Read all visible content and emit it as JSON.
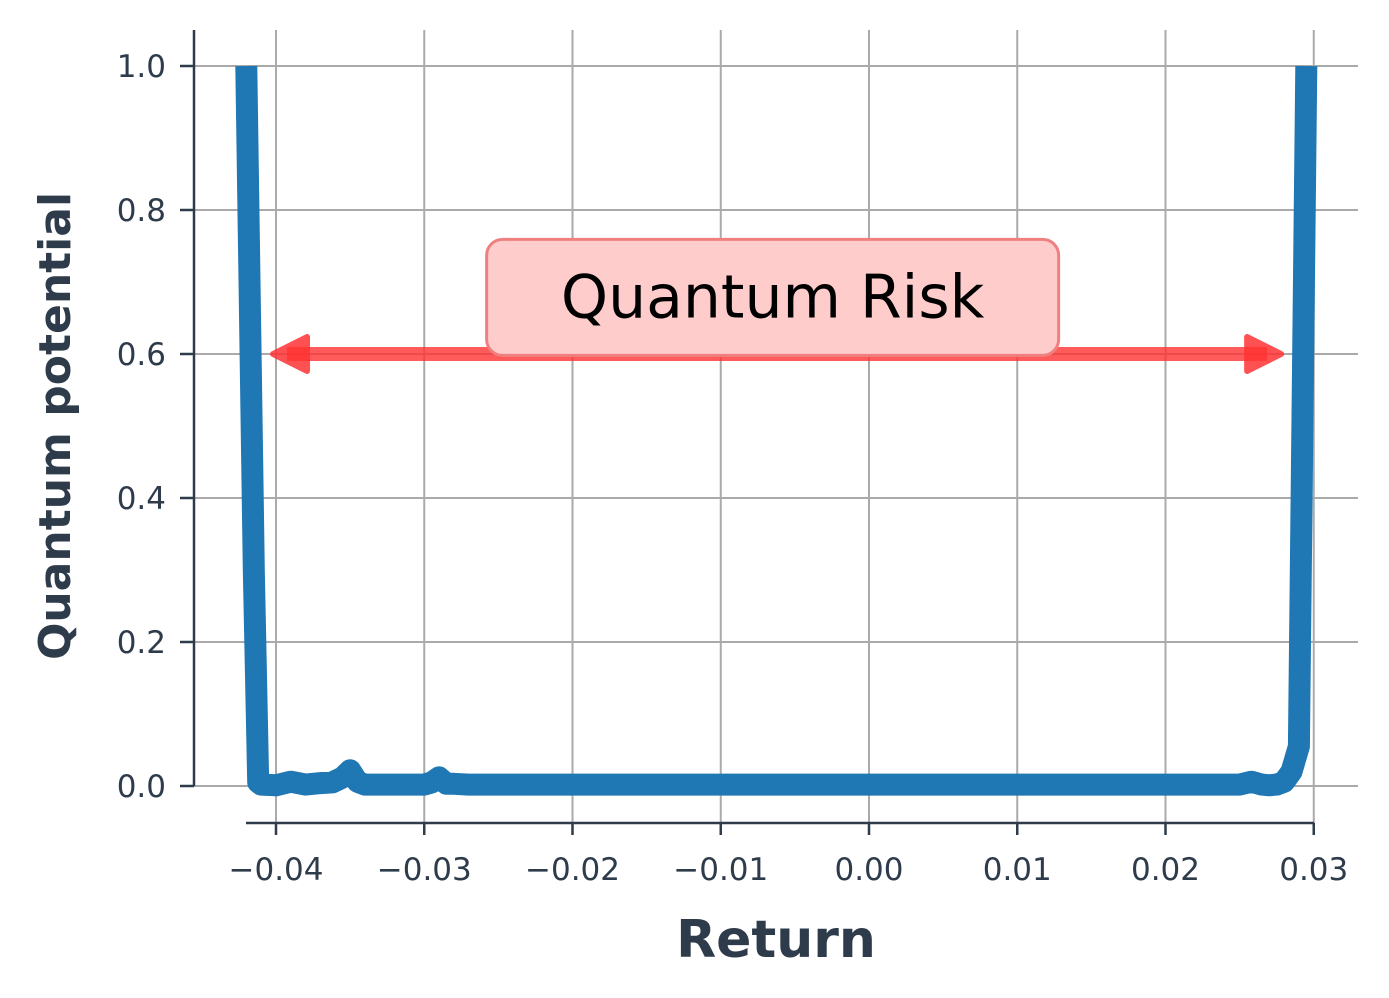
{
  "chart_data": {
    "type": "line",
    "title": "",
    "xlabel": "Return",
    "ylabel": "Quantum potential",
    "xlim": [
      -0.0455,
      0.033
    ],
    "ylim": [
      -0.05,
      1.05
    ],
    "xticks": [
      -0.04,
      -0.03,
      -0.02,
      -0.01,
      0.0,
      0.01,
      0.02,
      0.03
    ],
    "xtick_labels": [
      "−0.04",
      "−0.03",
      "−0.02",
      "−0.01",
      "0.00",
      "0.01",
      "0.02",
      "0.03"
    ],
    "yticks": [
      0.0,
      0.2,
      0.4,
      0.6,
      0.8,
      1.0
    ],
    "ytick_labels": [
      "0.0",
      "0.2",
      "0.4",
      "0.6",
      "0.8",
      "1.0"
    ],
    "grid": true,
    "series": [
      {
        "color": "#1f77b4",
        "x": [
          -0.042,
          -0.0415,
          -0.0412,
          -0.041,
          -0.04,
          -0.039,
          -0.038,
          -0.037,
          -0.0362,
          -0.0355,
          -0.035,
          -0.0345,
          -0.034,
          -0.033,
          -0.032,
          -0.031,
          -0.03,
          -0.0295,
          -0.029,
          -0.0285,
          -0.028,
          -0.027,
          -0.026,
          -0.025,
          -0.02,
          -0.015,
          -0.01,
          -0.005,
          0.0,
          0.005,
          0.01,
          0.015,
          0.02,
          0.024,
          0.025,
          0.0258,
          0.0265,
          0.027,
          0.0275,
          0.028,
          0.0285,
          0.029,
          0.0295
        ],
        "y": [
          1.0,
          0.3,
          0.005,
          0.002,
          0.001,
          0.006,
          0.002,
          0.004,
          0.005,
          0.012,
          0.022,
          0.006,
          0.002,
          0.002,
          0.002,
          0.002,
          0.002,
          0.005,
          0.012,
          0.003,
          0.003,
          0.002,
          0.002,
          0.002,
          0.002,
          0.002,
          0.002,
          0.002,
          0.002,
          0.002,
          0.002,
          0.002,
          0.002,
          0.002,
          0.002,
          0.006,
          0.002,
          0.001,
          0.002,
          0.006,
          0.02,
          0.055,
          1.0
        ]
      }
    ],
    "annotations": [
      {
        "type": "double-arrow",
        "color": "#ff3333",
        "x_start": -0.0402,
        "x_end": 0.0278,
        "y": 0.6
      },
      {
        "type": "text-box",
        "text": "Quantum Risk",
        "x": -0.0065,
        "y": 0.68,
        "box_fill": "#ffcccc",
        "box_edge": "#f08080"
      }
    ]
  }
}
